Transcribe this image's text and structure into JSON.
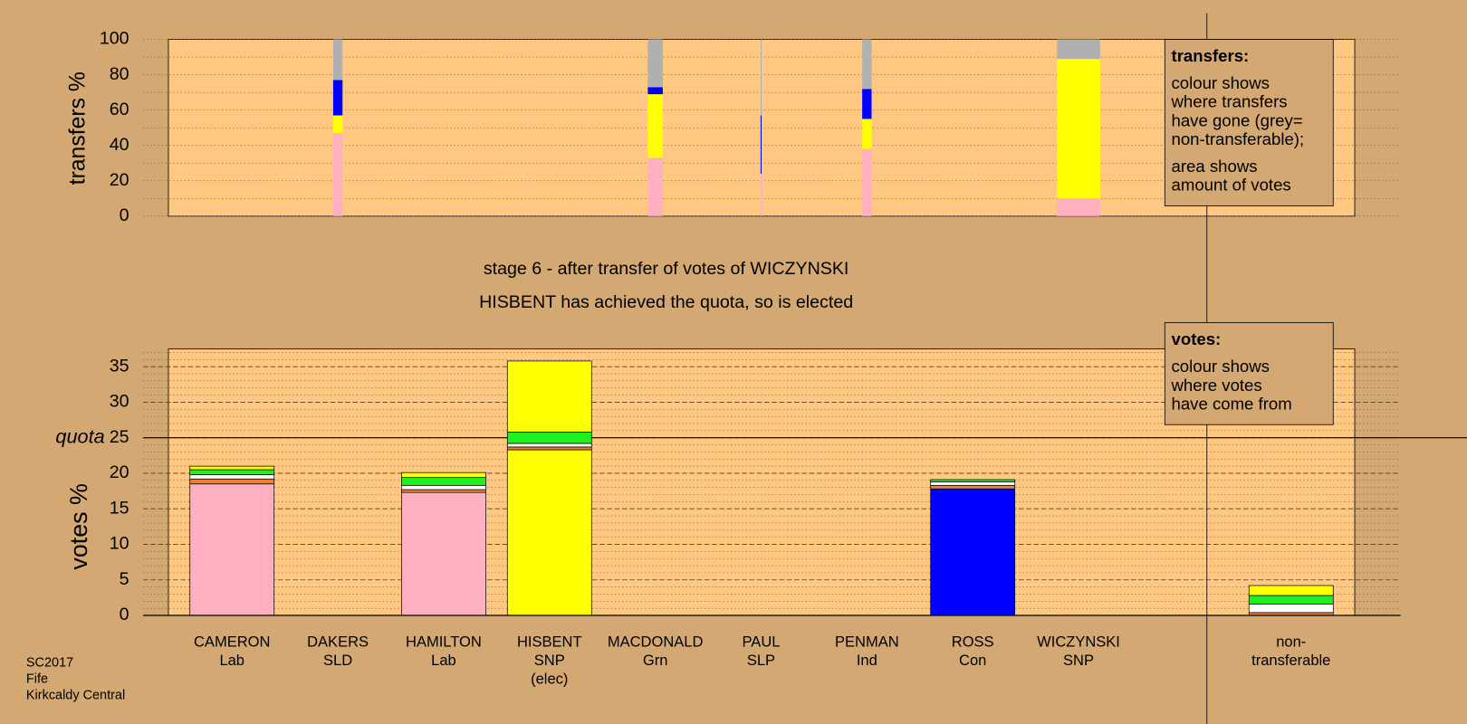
{
  "footer": [
    "SC2017",
    "Fife",
    "Kirkcaldy Central"
  ],
  "chart_data": [
    {
      "type": "transfer-bar",
      "ylabel": "transfers %",
      "ylim": [
        0,
        100
      ],
      "yticks": [
        0,
        20,
        40,
        60,
        80,
        100
      ],
      "grid": true,
      "amounts": [
        null,
        1.0,
        null,
        null,
        1.6,
        0.1,
        1.0,
        null,
        4.6,
        null
      ],
      "series": [
        {
          "color": "#ffb0c0",
          "values": [
            null,
            47,
            null,
            null,
            33,
            24,
            38,
            null,
            10,
            null
          ]
        },
        {
          "color": "#ffff00",
          "values": [
            null,
            10,
            null,
            null,
            36,
            0,
            17,
            null,
            79,
            null
          ]
        },
        {
          "color": "#0000ff",
          "values": [
            null,
            20,
            null,
            null,
            4,
            33,
            17,
            null,
            0,
            null
          ]
        },
        {
          "color": "#b0b0b0",
          "values": [
            null,
            23,
            null,
            null,
            27,
            43,
            28,
            null,
            11,
            null
          ]
        }
      ],
      "note": {
        "title": "transfers:",
        "paragraphs": [
          [
            "colour shows",
            "where transfers",
            "have gone (grey=",
            "non-transferable);"
          ],
          [
            "area shows",
            "amount of votes"
          ]
        ]
      }
    },
    {
      "type": "stacked-bar",
      "title": "stage 6 - after transfer of votes of WICZYNSKI",
      "subtitle": "HISBENT has achieved the quota, so is elected",
      "ylabel": "votes %",
      "ylim": [
        0,
        37.5
      ],
      "yticks": [
        0,
        5,
        10,
        15,
        20,
        25,
        30,
        35
      ],
      "grid": true,
      "minor_grid": true,
      "quota": 25,
      "quota_label": "quota",
      "categories": [
        [
          "CAMERON",
          "Lab"
        ],
        [
          "DAKERS",
          "SLD"
        ],
        [
          "HAMILTON",
          "Lab"
        ],
        [
          "HISBENT",
          "SNP",
          "(elec)"
        ],
        [
          "MACDONALD",
          "Grn"
        ],
        [
          "PAUL",
          "SLP"
        ],
        [
          "PENMAN",
          "Ind"
        ],
        [
          "ROSS",
          "Con"
        ],
        [
          "WICZYNSKI",
          "SNP"
        ],
        [
          "non-",
          "transferable"
        ]
      ],
      "series": [
        {
          "color": "#ffb0c0",
          "values": [
            18.5,
            null,
            17.3,
            null,
            null,
            null,
            null,
            null,
            null,
            null
          ]
        },
        {
          "color": "#ffff00",
          "values": [
            null,
            null,
            null,
            23.3,
            null,
            null,
            null,
            null,
            null,
            null
          ]
        },
        {
          "color": "#0000ff",
          "values": [
            null,
            null,
            null,
            null,
            null,
            null,
            null,
            17.8,
            null,
            null
          ]
        },
        {
          "color": "#f08030",
          "values": [
            0.7,
            null,
            0.4,
            0.4,
            null,
            null,
            null,
            0.5,
            null,
            0.4
          ]
        },
        {
          "color": "#ffffff",
          "values": [
            0.6,
            null,
            0.6,
            0.5,
            null,
            null,
            null,
            0.5,
            null,
            1.2
          ]
        },
        {
          "color": "#20f020",
          "values": [
            0.7,
            null,
            1.1,
            1.6,
            null,
            null,
            null,
            0.3,
            null,
            1.2
          ]
        },
        {
          "color": "#ffff00",
          "values": [
            0.5,
            null,
            0.7,
            10,
            null,
            null,
            null,
            null,
            null,
            1.4
          ]
        }
      ],
      "note": {
        "title": "votes:",
        "paragraphs": [
          [
            "colour shows",
            "where votes",
            "have come from"
          ]
        ]
      }
    }
  ]
}
